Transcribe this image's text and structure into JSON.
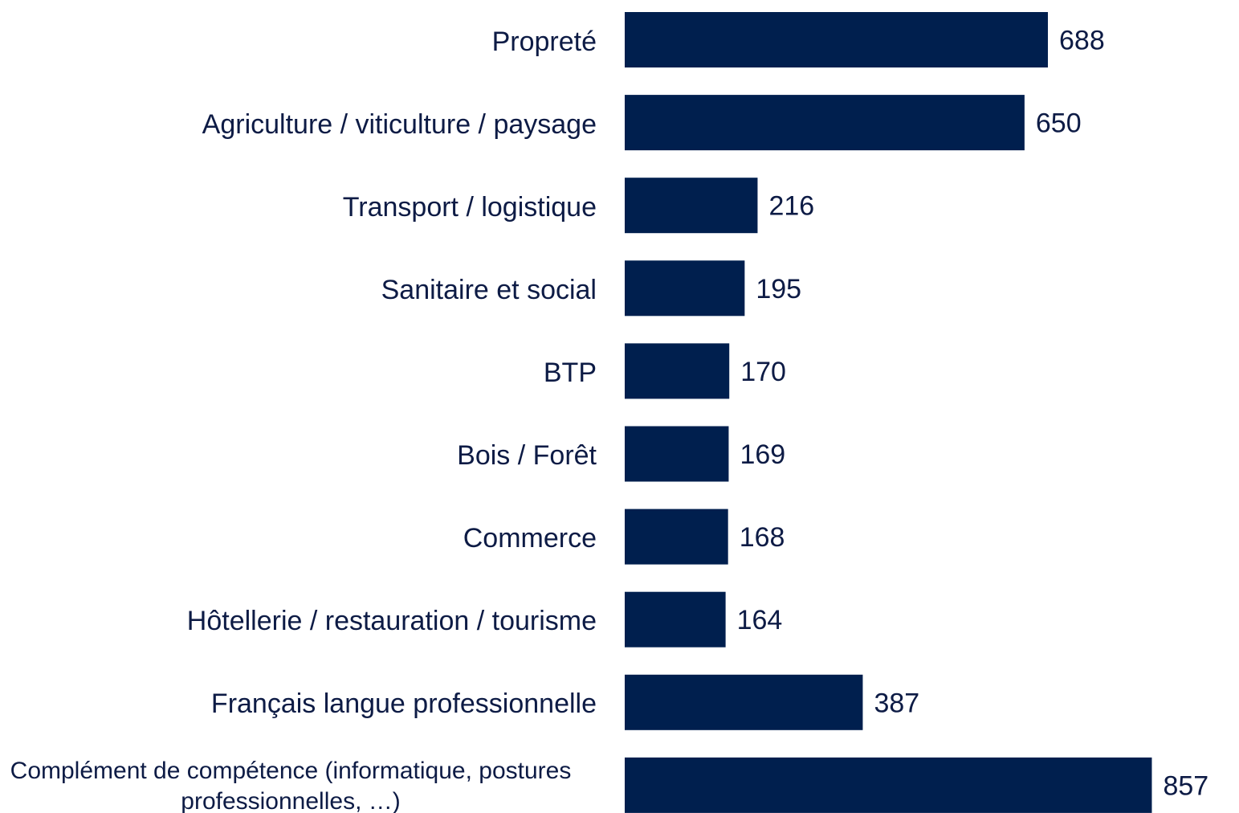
{
  "chart_data": {
    "type": "bar",
    "orientation": "horizontal",
    "categories": [
      "Propreté",
      "Agriculture / viticulture / paysage",
      "Transport / logistique",
      "Sanitaire et social",
      "BTP",
      "Bois / Forêt",
      "Commerce",
      "Hôtellerie / restauration / tourisme",
      "Français langue professionnelle",
      "Complément de compétence (informatique, postures professionnelles, …)"
    ],
    "values": [
      688,
      650,
      216,
      195,
      170,
      169,
      168,
      164,
      387,
      857
    ],
    "color": "#001f4e",
    "xlim": [
      0,
      1000
    ]
  }
}
